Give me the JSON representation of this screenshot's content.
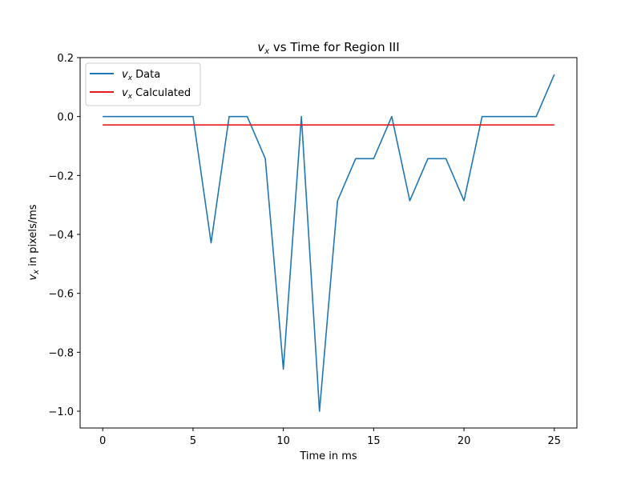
{
  "chart_data": {
    "type": "line",
    "title_var": "v",
    "title_sub": "x",
    "title_rest": " vs Time for Region III",
    "xlabel": "Time in ms",
    "ylabel_var": "v",
    "ylabel_sub": "x",
    "ylabel_rest": " in pixels/ms",
    "xlim": [
      -1.25,
      26.25
    ],
    "ylim": [
      -1.057,
      0.2
    ],
    "xticks": [
      0,
      5,
      10,
      15,
      20,
      25
    ],
    "yticks": [
      0.2,
      0.0,
      -0.2,
      -0.4,
      -0.6,
      -0.8,
      -1.0
    ],
    "ytick_labels": [
      "0.2",
      "0.0",
      "−0.2",
      "−0.4",
      "−0.6",
      "−0.8",
      "−1.0"
    ],
    "legend_position": "top-left",
    "grid": false,
    "series": [
      {
        "name_var": "v",
        "name_sub": "x",
        "name_rest": " Data",
        "color": "#1f77b4",
        "x": [
          0,
          1,
          2,
          3,
          4,
          5,
          6,
          7,
          8,
          9,
          10,
          11,
          12,
          13,
          14,
          15,
          16,
          17,
          18,
          19,
          20,
          21,
          22,
          23,
          24,
          25
        ],
        "y": [
          0,
          0,
          0,
          0,
          0,
          0,
          -0.4286,
          0,
          0,
          -0.1429,
          -0.8571,
          0,
          -1.0,
          -0.2857,
          -0.1429,
          -0.1429,
          0,
          -0.2857,
          -0.1429,
          -0.1429,
          -0.2857,
          0,
          0,
          0,
          0,
          0.1429
        ]
      },
      {
        "name_var": "v",
        "name_sub": "x",
        "name_rest": " Calculated",
        "color": "#e41a1c",
        "x": [
          0,
          25
        ],
        "y": [
          -0.0286,
          -0.0286
        ]
      }
    ]
  }
}
